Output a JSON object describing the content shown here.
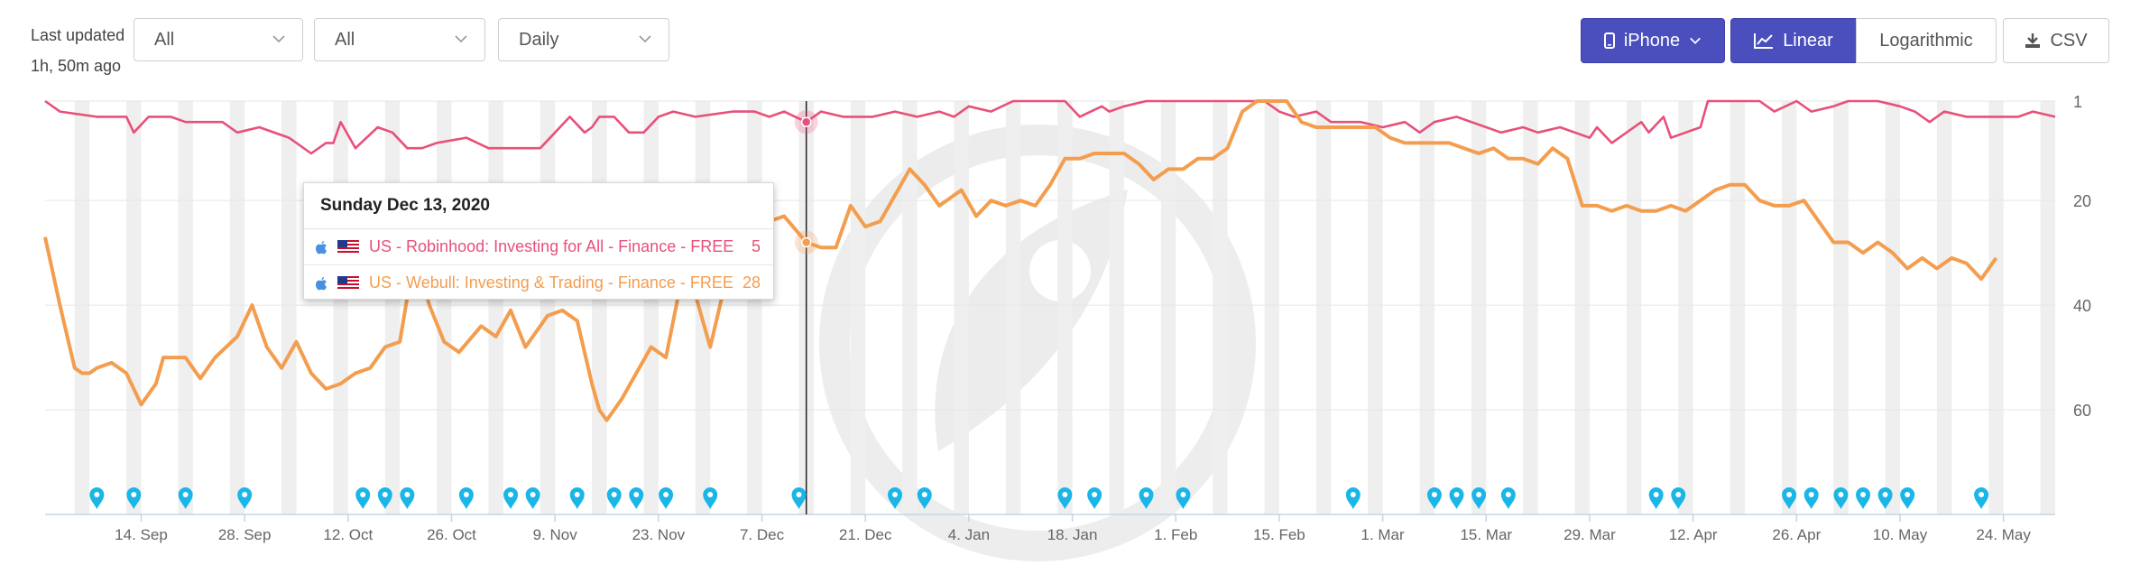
{
  "header": {
    "last_updated_label": "Last updated",
    "last_updated_value": "1h, 50m ago",
    "filters": [
      {
        "value": "All"
      },
      {
        "value": "All"
      },
      {
        "value": "Daily"
      }
    ],
    "device_button": "iPhone",
    "scale_linear": "Linear",
    "scale_log": "Logarithmic",
    "csv_button": "CSV"
  },
  "tooltip": {
    "date": "Sunday Dec 13, 2020",
    "rows": [
      {
        "label": "US - Robinhood: Investing for All - Finance - FREE",
        "value": "5",
        "color": "#e8507a"
      },
      {
        "label": "US - Webull: Investing & Trading - Finance - FREE",
        "value": "28",
        "color": "#f39d4e"
      }
    ]
  },
  "chart_data": {
    "type": "line",
    "title": "",
    "xlabel": "",
    "ylabel": "",
    "y_inverted": true,
    "y_ticks": [
      1,
      20,
      40,
      60
    ],
    "ylim": [
      1,
      80
    ],
    "x_range": [
      "2020-09-01",
      "2021-05-31"
    ],
    "x_tick_labels": [
      "14. Sep",
      "28. Sep",
      "12. Oct",
      "26. Oct",
      "9. Nov",
      "23. Nov",
      "7. Dec",
      "21. Dec",
      "4. Jan",
      "18. Jan",
      "1. Feb",
      "15. Feb",
      "1. Mar",
      "15. Mar",
      "29. Mar",
      "12. Apr",
      "26. Apr",
      "10. May",
      "24. May"
    ],
    "x_tick_dates": [
      "2020-09-14",
      "2020-09-28",
      "2020-10-12",
      "2020-10-26",
      "2020-11-09",
      "2020-11-23",
      "2020-12-07",
      "2020-12-21",
      "2021-01-04",
      "2021-01-18",
      "2021-02-01",
      "2021-02-15",
      "2021-03-01",
      "2021-03-15",
      "2021-03-29",
      "2021-04-12",
      "2021-04-26",
      "2021-05-10",
      "2021-05-24"
    ],
    "grid": true,
    "weekend_bands": true,
    "hover_date": "2020-12-13",
    "series": [
      {
        "name": "US - Robinhood: Investing for All - Finance - FREE",
        "color": "#e8507a",
        "points": [
          [
            "2020-09-01",
            1
          ],
          [
            "2020-09-03",
            3
          ],
          [
            "2020-09-08",
            4
          ],
          [
            "2020-09-12",
            4
          ],
          [
            "2020-09-13",
            7
          ],
          [
            "2020-09-15",
            4
          ],
          [
            "2020-09-18",
            4
          ],
          [
            "2020-09-20",
            5
          ],
          [
            "2020-09-25",
            5
          ],
          [
            "2020-09-27",
            7
          ],
          [
            "2020-09-30",
            6
          ],
          [
            "2020-10-04",
            8
          ],
          [
            "2020-10-07",
            11
          ],
          [
            "2020-10-09",
            9
          ],
          [
            "2020-10-10",
            9
          ],
          [
            "2020-10-11",
            5
          ],
          [
            "2020-10-13",
            10
          ],
          [
            "2020-10-16",
            6
          ],
          [
            "2020-10-18",
            7
          ],
          [
            "2020-10-20",
            10
          ],
          [
            "2020-10-22",
            10
          ],
          [
            "2020-10-24",
            9
          ],
          [
            "2020-10-28",
            8
          ],
          [
            "2020-10-31",
            10
          ],
          [
            "2020-11-07",
            10
          ],
          [
            "2020-11-09",
            7
          ],
          [
            "2020-11-11",
            4
          ],
          [
            "2020-11-13",
            7
          ],
          [
            "2020-11-14",
            6
          ],
          [
            "2020-11-15",
            4
          ],
          [
            "2020-11-17",
            4
          ],
          [
            "2020-11-19",
            7
          ],
          [
            "2020-11-21",
            7
          ],
          [
            "2020-11-23",
            4
          ],
          [
            "2020-11-25",
            3
          ],
          [
            "2020-11-28",
            4
          ],
          [
            "2020-12-03",
            3
          ],
          [
            "2020-12-06",
            3
          ],
          [
            "2020-12-08",
            4
          ],
          [
            "2020-12-10",
            3
          ],
          [
            "2020-12-13",
            5
          ],
          [
            "2020-12-15",
            3
          ],
          [
            "2020-12-18",
            4
          ],
          [
            "2020-12-22",
            4
          ],
          [
            "2020-12-25",
            3
          ],
          [
            "2020-12-28",
            4
          ],
          [
            "2020-12-31",
            3
          ],
          [
            "2021-01-02",
            4
          ],
          [
            "2021-01-04",
            2
          ],
          [
            "2021-01-07",
            3
          ],
          [
            "2021-01-10",
            1
          ],
          [
            "2021-01-14",
            1
          ],
          [
            "2021-01-17",
            1
          ],
          [
            "2021-01-19",
            4
          ],
          [
            "2021-01-22",
            2
          ],
          [
            "2021-01-23",
            3
          ],
          [
            "2021-01-25",
            2
          ],
          [
            "2021-01-28",
            1
          ],
          [
            "2021-02-01",
            1
          ],
          [
            "2021-02-04",
            1
          ],
          [
            "2021-02-07",
            1
          ],
          [
            "2021-02-10",
            1
          ],
          [
            "2021-02-13",
            1
          ],
          [
            "2021-02-15",
            3
          ],
          [
            "2021-02-17",
            4
          ],
          [
            "2021-02-20",
            3
          ],
          [
            "2021-02-22",
            5
          ],
          [
            "2021-02-26",
            5
          ],
          [
            "2021-03-01",
            6
          ],
          [
            "2021-03-04",
            5
          ],
          [
            "2021-03-06",
            7
          ],
          [
            "2021-03-08",
            5
          ],
          [
            "2021-03-11",
            4
          ],
          [
            "2021-03-13",
            5
          ],
          [
            "2021-03-15",
            6
          ],
          [
            "2021-03-17",
            7
          ],
          [
            "2021-03-20",
            6
          ],
          [
            "2021-03-22",
            7
          ],
          [
            "2021-03-25",
            6
          ],
          [
            "2021-03-27",
            7
          ],
          [
            "2021-03-29",
            8
          ],
          [
            "2021-03-30",
            6
          ],
          [
            "2021-04-01",
            9
          ],
          [
            "2021-04-03",
            7
          ],
          [
            "2021-04-05",
            5
          ],
          [
            "2021-04-06",
            7
          ],
          [
            "2021-04-08",
            4
          ],
          [
            "2021-04-09",
            8
          ],
          [
            "2021-04-11",
            7
          ],
          [
            "2021-04-13",
            6
          ],
          [
            "2021-04-14",
            1
          ],
          [
            "2021-04-18",
            1
          ],
          [
            "2021-04-21",
            1
          ],
          [
            "2021-04-23",
            3
          ],
          [
            "2021-04-26",
            1
          ],
          [
            "2021-04-28",
            3
          ],
          [
            "2021-05-01",
            2
          ],
          [
            "2021-05-03",
            1
          ],
          [
            "2021-05-07",
            1
          ],
          [
            "2021-05-10",
            2
          ],
          [
            "2021-05-12",
            3
          ],
          [
            "2021-05-14",
            5
          ],
          [
            "2021-05-16",
            3
          ],
          [
            "2021-05-19",
            4
          ],
          [
            "2021-05-23",
            4
          ],
          [
            "2021-05-26",
            4
          ],
          [
            "2021-05-28",
            3
          ],
          [
            "2021-05-31",
            4
          ]
        ]
      },
      {
        "name": "US - Webull: Investing & Trading - Finance - FREE",
        "color": "#f39d4e",
        "points": [
          [
            "2020-09-01",
            27
          ],
          [
            "2020-09-03",
            40
          ],
          [
            "2020-09-05",
            52
          ],
          [
            "2020-09-06",
            53
          ],
          [
            "2020-09-07",
            53
          ],
          [
            "2020-09-08",
            52
          ],
          [
            "2020-09-10",
            51
          ],
          [
            "2020-09-12",
            53
          ],
          [
            "2020-09-14",
            59
          ],
          [
            "2020-09-16",
            55
          ],
          [
            "2020-09-17",
            50
          ],
          [
            "2020-09-20",
            50
          ],
          [
            "2020-09-22",
            54
          ],
          [
            "2020-09-24",
            50
          ],
          [
            "2020-09-27",
            46
          ],
          [
            "2020-09-29",
            40
          ],
          [
            "2020-10-01",
            48
          ],
          [
            "2020-10-03",
            52
          ],
          [
            "2020-10-05",
            47
          ],
          [
            "2020-10-07",
            53
          ],
          [
            "2020-10-09",
            56
          ],
          [
            "2020-10-11",
            55
          ],
          [
            "2020-10-13",
            53
          ],
          [
            "2020-10-15",
            52
          ],
          [
            "2020-10-17",
            48
          ],
          [
            "2020-10-19",
            47
          ],
          [
            "2020-10-21",
            30
          ],
          [
            "2020-10-23",
            40
          ],
          [
            "2020-10-25",
            47
          ],
          [
            "2020-10-27",
            49
          ],
          [
            "2020-10-30",
            44
          ],
          [
            "2020-11-01",
            46
          ],
          [
            "2020-11-03",
            41
          ],
          [
            "2020-11-05",
            48
          ],
          [
            "2020-11-08",
            42
          ],
          [
            "2020-11-10",
            41
          ],
          [
            "2020-11-12",
            43
          ],
          [
            "2020-11-14",
            55
          ],
          [
            "2020-11-15",
            60
          ],
          [
            "2020-11-16",
            62
          ],
          [
            "2020-11-18",
            58
          ],
          [
            "2020-11-20",
            53
          ],
          [
            "2020-11-22",
            48
          ],
          [
            "2020-11-24",
            50
          ],
          [
            "2020-11-26",
            36
          ],
          [
            "2020-11-28",
            38
          ],
          [
            "2020-11-30",
            48
          ],
          [
            "2020-12-02",
            36
          ],
          [
            "2020-12-04",
            28
          ],
          [
            "2020-12-06",
            25
          ],
          [
            "2020-12-08",
            24
          ],
          [
            "2020-12-10",
            23
          ],
          [
            "2020-12-13",
            28
          ],
          [
            "2020-12-15",
            29
          ],
          [
            "2020-12-17",
            29
          ],
          [
            "2020-12-19",
            21
          ],
          [
            "2020-12-21",
            25
          ],
          [
            "2020-12-23",
            24
          ],
          [
            "2020-12-25",
            19
          ],
          [
            "2020-12-27",
            14
          ],
          [
            "2020-12-29",
            17
          ],
          [
            "2020-12-31",
            21
          ],
          [
            "2021-01-03",
            18
          ],
          [
            "2021-01-05",
            23
          ],
          [
            "2021-01-07",
            20
          ],
          [
            "2021-01-09",
            21
          ],
          [
            "2021-01-11",
            20
          ],
          [
            "2021-01-13",
            21
          ],
          [
            "2021-01-15",
            17
          ],
          [
            "2021-01-17",
            12
          ],
          [
            "2021-01-19",
            12
          ],
          [
            "2021-01-21",
            11
          ],
          [
            "2021-01-23",
            11
          ],
          [
            "2021-01-25",
            11
          ],
          [
            "2021-01-27",
            13
          ],
          [
            "2021-01-29",
            16
          ],
          [
            "2021-01-31",
            14
          ],
          [
            "2021-02-02",
            14
          ],
          [
            "2021-02-04",
            12
          ],
          [
            "2021-02-06",
            12
          ],
          [
            "2021-02-08",
            10
          ],
          [
            "2021-02-10",
            3
          ],
          [
            "2021-02-12",
            1
          ],
          [
            "2021-02-14",
            1
          ],
          [
            "2021-02-16",
            1
          ],
          [
            "2021-02-18",
            5
          ],
          [
            "2021-02-20",
            6
          ],
          [
            "2021-02-22",
            6
          ],
          [
            "2021-02-25",
            6
          ],
          [
            "2021-02-28",
            6
          ],
          [
            "2021-03-02",
            8
          ],
          [
            "2021-03-04",
            9
          ],
          [
            "2021-03-08",
            9
          ],
          [
            "2021-03-10",
            9
          ],
          [
            "2021-03-12",
            10
          ],
          [
            "2021-03-14",
            11
          ],
          [
            "2021-03-16",
            10
          ],
          [
            "2021-03-18",
            12
          ],
          [
            "2021-03-20",
            12
          ],
          [
            "2021-03-22",
            13
          ],
          [
            "2021-03-24",
            10
          ],
          [
            "2021-03-26",
            12
          ],
          [
            "2021-03-28",
            21
          ],
          [
            "2021-03-30",
            21
          ],
          [
            "2021-04-01",
            22
          ],
          [
            "2021-04-03",
            21
          ],
          [
            "2021-04-05",
            22
          ],
          [
            "2021-04-07",
            22
          ],
          [
            "2021-04-09",
            21
          ],
          [
            "2021-04-11",
            22
          ],
          [
            "2021-04-13",
            20
          ],
          [
            "2021-04-15",
            18
          ],
          [
            "2021-04-17",
            17
          ],
          [
            "2021-04-19",
            17
          ],
          [
            "2021-04-21",
            20
          ],
          [
            "2021-04-23",
            21
          ],
          [
            "2021-04-25",
            21
          ],
          [
            "2021-04-27",
            20
          ],
          [
            "2021-04-29",
            24
          ],
          [
            "2021-05-01",
            28
          ],
          [
            "2021-05-03",
            28
          ],
          [
            "2021-05-05",
            30
          ],
          [
            "2021-05-07",
            28
          ],
          [
            "2021-05-09",
            30
          ],
          [
            "2021-05-11",
            33
          ],
          [
            "2021-05-13",
            31
          ],
          [
            "2021-05-15",
            33
          ],
          [
            "2021-05-17",
            31
          ],
          [
            "2021-05-19",
            32
          ],
          [
            "2021-05-21",
            35
          ],
          [
            "2021-05-23",
            31
          ]
        ]
      }
    ],
    "annotation_dates": [
      "2020-09-08",
      "2020-09-13",
      "2020-09-20",
      "2020-09-28",
      "2020-10-14",
      "2020-10-17",
      "2020-10-20",
      "2020-10-28",
      "2020-11-03",
      "2020-11-06",
      "2020-11-12",
      "2020-11-17",
      "2020-11-20",
      "2020-11-24",
      "2020-11-30",
      "2020-12-12",
      "2020-12-25",
      "2020-12-29",
      "2021-01-17",
      "2021-01-21",
      "2021-01-28",
      "2021-02-02",
      "2021-02-25",
      "2021-03-08",
      "2021-03-11",
      "2021-03-14",
      "2021-03-18",
      "2021-04-07",
      "2021-04-10",
      "2021-04-25",
      "2021-04-28",
      "2021-05-02",
      "2021-05-05",
      "2021-05-08",
      "2021-05-11",
      "2021-05-21"
    ]
  }
}
